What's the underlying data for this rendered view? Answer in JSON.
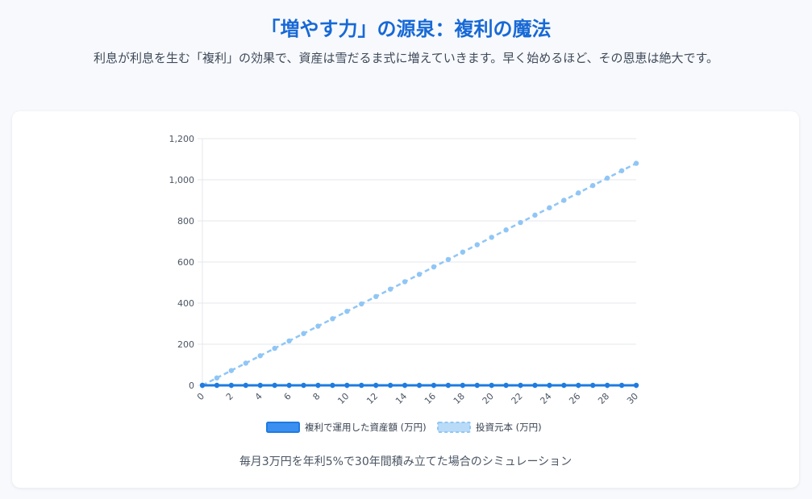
{
  "header": {
    "title": "「増やす力」の源泉：複利の魔法",
    "subtitle": "利息が利息を生む「複利」の効果で、資産は雪だるま式に増えていきます。早く始めるほど、その恩恵は絶大です。"
  },
  "caption": "毎月3万円を年利5%で30年間積み立てた場合のシミュレーション",
  "colors": {
    "compound": "#1e7be0",
    "compound_fill": "#3b8ff0",
    "principal": "#90c6f5",
    "grid": "#e5e7eb",
    "title": "#1769d6"
  },
  "chart_data": {
    "type": "line",
    "x": [
      0,
      1,
      2,
      3,
      4,
      5,
      6,
      7,
      8,
      9,
      10,
      11,
      12,
      13,
      14,
      15,
      16,
      17,
      18,
      19,
      20,
      21,
      22,
      23,
      24,
      25,
      26,
      27,
      28,
      29,
      30
    ],
    "x_tick_labels": [
      "0",
      "2",
      "4",
      "6",
      "8",
      "10",
      "12",
      "14",
      "16",
      "18",
      "20",
      "22",
      "24",
      "26",
      "28",
      "30"
    ],
    "y_tick_labels": [
      "0",
      "200",
      "400",
      "600",
      "800",
      "1,000",
      "1,200"
    ],
    "ylim": [
      0,
      1200
    ],
    "xlim": [
      0,
      30
    ],
    "grid": true,
    "legend_position": "bottom",
    "series": [
      {
        "name": "複利で運用した資産額 (万円)",
        "style": "solid",
        "values": [
          0,
          0,
          0,
          0,
          0,
          0,
          0,
          0,
          0,
          0,
          0,
          0,
          0,
          0,
          0,
          0,
          0,
          0,
          0,
          0,
          0,
          0,
          0,
          0,
          0,
          0,
          0,
          0,
          0,
          0,
          0
        ]
      },
      {
        "name": "投資元本 (万円)",
        "style": "dashed",
        "values": [
          0,
          36,
          72,
          108,
          144,
          180,
          216,
          252,
          288,
          324,
          360,
          396,
          432,
          468,
          504,
          540,
          576,
          612,
          648,
          684,
          720,
          756,
          792,
          828,
          864,
          900,
          936,
          972,
          1008,
          1044,
          1080
        ]
      }
    ]
  }
}
